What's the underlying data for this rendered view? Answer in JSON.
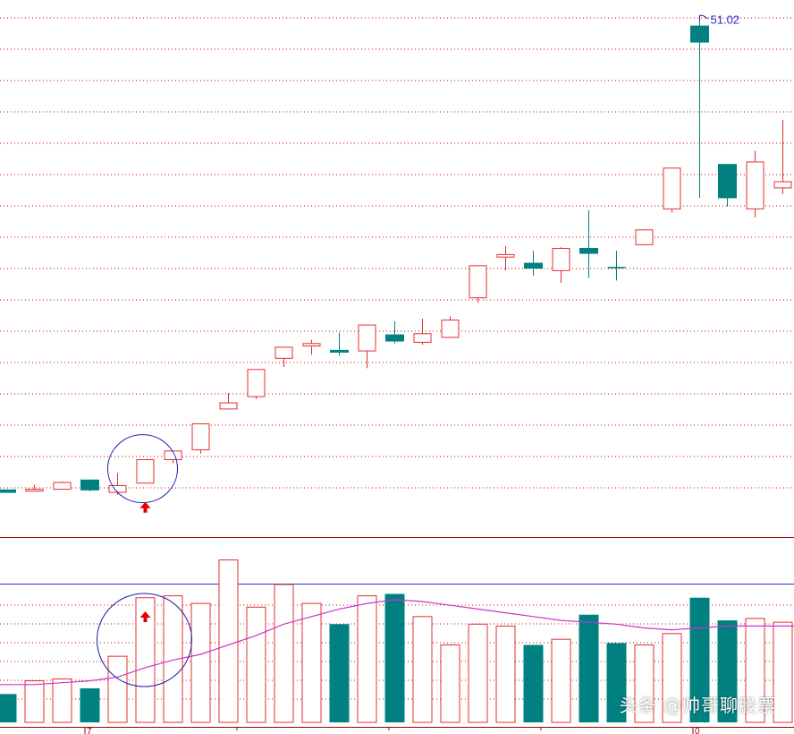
{
  "chart_data": [
    {
      "type": "candlestick",
      "peak_label": "51.02",
      "candles": [
        {
          "o": 13.05,
          "c": 12.85,
          "h": 13.05,
          "l": 12.85,
          "dir": "down"
        },
        {
          "o": 12.95,
          "c": 13.1,
          "h": 13.45,
          "l": 12.95,
          "dir": "up"
        },
        {
          "o": 13.1,
          "c": 13.65,
          "h": 13.75,
          "l": 13.1,
          "dir": "up"
        },
        {
          "o": 13.85,
          "c": 13.05,
          "h": 13.9,
          "l": 12.95,
          "dir": "down"
        },
        {
          "o": 12.85,
          "c": 13.4,
          "h": 14.4,
          "l": 12.65,
          "dir": "up"
        },
        {
          "o": 13.6,
          "c": 15.5,
          "h": 15.5,
          "l": 13.6,
          "dir": "up",
          "highlight": true
        },
        {
          "o": 15.5,
          "c": 16.2,
          "h": 16.2,
          "l": 15.2,
          "dir": "up"
        },
        {
          "o": 16.3,
          "c": 18.4,
          "h": 18.4,
          "l": 16.0,
          "dir": "up"
        },
        {
          "o": 19.6,
          "c": 20.1,
          "h": 20.9,
          "l": 19.6,
          "dir": "up"
        },
        {
          "o": 20.6,
          "c": 22.8,
          "h": 22.8,
          "l": 20.4,
          "dir": "up"
        },
        {
          "o": 23.7,
          "c": 24.6,
          "h": 24.6,
          "l": 23.0,
          "dir": "up"
        },
        {
          "o": 24.7,
          "c": 24.9,
          "h": 25.2,
          "l": 24.0,
          "dir": "up"
        },
        {
          "o": 24.35,
          "c": 24.2,
          "h": 25.8,
          "l": 23.9,
          "dir": "down"
        },
        {
          "o": 24.3,
          "c": 26.4,
          "h": 26.4,
          "l": 22.9,
          "dir": "up"
        },
        {
          "o": 25.6,
          "c": 25.1,
          "h": 26.7,
          "l": 24.9,
          "dir": "down"
        },
        {
          "o": 25.0,
          "c": 25.7,
          "h": 26.9,
          "l": 24.8,
          "dir": "up"
        },
        {
          "o": 25.4,
          "c": 26.8,
          "h": 27.1,
          "l": 25.4,
          "dir": "up"
        },
        {
          "o": 28.6,
          "c": 31.2,
          "h": 31.2,
          "l": 28.2,
          "dir": "up"
        },
        {
          "o": 31.9,
          "c": 32.1,
          "h": 32.8,
          "l": 30.8,
          "dir": "up"
        },
        {
          "o": 31.4,
          "c": 31.0,
          "h": 32.4,
          "l": 30.4,
          "dir": "down"
        },
        {
          "o": 30.8,
          "c": 32.6,
          "h": 32.7,
          "l": 29.8,
          "dir": "up"
        },
        {
          "o": 32.6,
          "c": 32.2,
          "h": 35.7,
          "l": 30.2,
          "dir": "down"
        },
        {
          "o": 31.05,
          "c": 30.95,
          "h": 32.4,
          "l": 30.0,
          "dir": "flat"
        },
        {
          "o": 32.9,
          "c": 34.1,
          "h": 34.1,
          "l": 32.9,
          "dir": "up"
        },
        {
          "o": 35.8,
          "c": 39.1,
          "h": 39.1,
          "l": 35.5,
          "dir": "up"
        },
        {
          "o": 50.6,
          "c": 49.3,
          "h": 51.02,
          "l": 36.7,
          "dir": "down"
        },
        {
          "o": 39.4,
          "c": 36.7,
          "h": 39.4,
          "l": 36.0,
          "dir": "down"
        },
        {
          "o": 35.8,
          "c": 39.6,
          "h": 40.5,
          "l": 35.1,
          "dir": "up"
        },
        {
          "o": 37.5,
          "c": 38.0,
          "h": 43.0,
          "l": 37.0,
          "dir": "up"
        }
      ]
    },
    {
      "type": "bar",
      "x_tick_labels": [
        "7",
        "0"
      ],
      "values": [
        1.5,
        2.2,
        2.3,
        1.8,
        3.5,
        6.6,
        6.7,
        6.3,
        8.6,
        6.1,
        7.3,
        6.3,
        5.2,
        6.7,
        6.8,
        5.6,
        4.1,
        5.2,
        5.1,
        4.1,
        4.4,
        5.7,
        4.2,
        4.1,
        4.7,
        6.6,
        5.4,
        5.5,
        5.3
      ],
      "colors": [
        "teal",
        "red",
        "red",
        "teal",
        "red",
        "red",
        "red",
        "red",
        "red",
        "red",
        "red",
        "red",
        "teal",
        "red",
        "teal",
        "red",
        "red",
        "red",
        "red",
        "teal",
        "red",
        "teal",
        "teal",
        "red",
        "red",
        "teal",
        "teal",
        "red",
        "red"
      ],
      "ma": [
        2.0,
        2.0,
        2.1,
        2.2,
        2.4,
        2.9,
        3.3,
        3.6,
        4.1,
        4.6,
        5.2,
        5.6,
        6.0,
        6.3,
        6.5,
        6.4,
        6.2,
        6.0,
        5.8,
        5.6,
        5.4,
        5.3,
        5.2,
        5.0,
        4.9,
        5.0,
        5.1,
        5.1,
        5.1
      ]
    }
  ],
  "watermark": "头条 @帅哥聊股票",
  "colors": {
    "up": "#e0302e",
    "down": "#008080",
    "grid": "#cc0000",
    "ma": "#cc33cc",
    "circle": "#1a1aaa",
    "blue_line": "#2d2dd6"
  }
}
